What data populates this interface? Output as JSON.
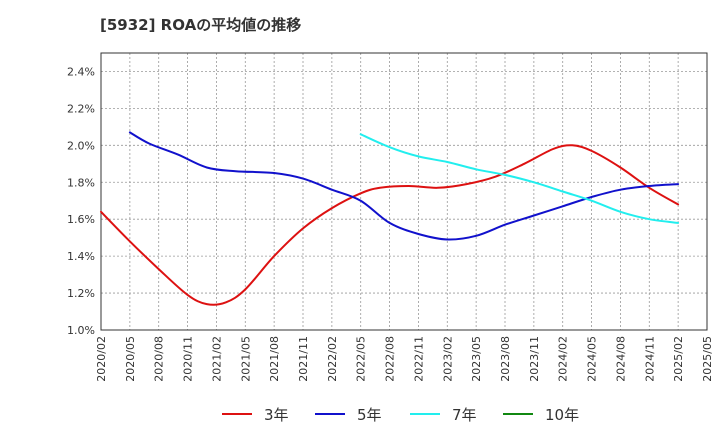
{
  "chart_data": {
    "type": "line",
    "title": "[5932]  ROAの平均値の推移",
    "xlabel": "",
    "ylabel": "",
    "ylim": [
      1.0,
      2.5
    ],
    "y_ticks": [
      1.0,
      1.2,
      1.4,
      1.6,
      1.8,
      2.0,
      2.2,
      2.4
    ],
    "y_tick_labels": [
      "1.0%",
      "1.2%",
      "1.4%",
      "1.6%",
      "1.8%",
      "2.0%",
      "2.2%",
      "2.4%"
    ],
    "x_tick_labels": [
      "2020/02",
      "2020/05",
      "2020/08",
      "2020/11",
      "2021/02",
      "2021/05",
      "2021/08",
      "2021/11",
      "2022/02",
      "2022/05",
      "2022/08",
      "2022/11",
      "2023/02",
      "2023/05",
      "2023/08",
      "2023/11",
      "2024/02",
      "2024/05",
      "2024/08",
      "2024/11",
      "2025/02",
      "2025/05"
    ],
    "grid": true,
    "legend_position": "bottom",
    "series": [
      {
        "name": "3年",
        "color": "#dd1111",
        "points": [
          [
            "2020/02",
            1.64
          ],
          [
            "2020/05",
            1.48
          ],
          [
            "2020/08",
            1.33
          ],
          [
            "2020/11",
            1.19
          ],
          [
            "2021/01",
            1.14
          ],
          [
            "2021/03",
            1.15
          ],
          [
            "2021/05",
            1.22
          ],
          [
            "2021/08",
            1.4
          ],
          [
            "2021/11",
            1.55
          ],
          [
            "2022/02",
            1.66
          ],
          [
            "2022/05",
            1.74
          ],
          [
            "2022/07",
            1.77
          ],
          [
            "2022/10",
            1.78
          ],
          [
            "2023/01",
            1.77
          ],
          [
            "2023/04",
            1.79
          ],
          [
            "2023/07",
            1.83
          ],
          [
            "2023/10",
            1.9
          ],
          [
            "2024/01",
            1.98
          ],
          [
            "2024/03",
            2.0
          ],
          [
            "2024/05",
            1.97
          ],
          [
            "2024/08",
            1.88
          ],
          [
            "2024/11",
            1.77
          ],
          [
            "2025/02",
            1.68
          ]
        ]
      },
      {
        "name": "5年",
        "color": "#1111cc",
        "points": [
          [
            "2020/05",
            2.07
          ],
          [
            "2020/07",
            2.01
          ],
          [
            "2020/10",
            1.95
          ],
          [
            "2021/01",
            1.88
          ],
          [
            "2021/04",
            1.86
          ],
          [
            "2021/08",
            1.85
          ],
          [
            "2021/11",
            1.82
          ],
          [
            "2022/02",
            1.76
          ],
          [
            "2022/05",
            1.7
          ],
          [
            "2022/08",
            1.58
          ],
          [
            "2022/11",
            1.52
          ],
          [
            "2023/02",
            1.49
          ],
          [
            "2023/05",
            1.51
          ],
          [
            "2023/08",
            1.57
          ],
          [
            "2023/11",
            1.62
          ],
          [
            "2024/02",
            1.67
          ],
          [
            "2024/05",
            1.72
          ],
          [
            "2024/08",
            1.76
          ],
          [
            "2024/11",
            1.78
          ],
          [
            "2025/02",
            1.79
          ]
        ]
      },
      {
        "name": "7年",
        "color": "#22eeee",
        "points": [
          [
            "2022/05",
            2.06
          ],
          [
            "2022/08",
            1.99
          ],
          [
            "2022/11",
            1.94
          ],
          [
            "2023/02",
            1.91
          ],
          [
            "2023/05",
            1.87
          ],
          [
            "2023/08",
            1.84
          ],
          [
            "2023/11",
            1.8
          ],
          [
            "2024/02",
            1.75
          ],
          [
            "2024/05",
            1.7
          ],
          [
            "2024/08",
            1.64
          ],
          [
            "2024/11",
            1.6
          ],
          [
            "2025/02",
            1.58
          ]
        ]
      },
      {
        "name": "10年",
        "color": "#118811",
        "points": []
      }
    ]
  }
}
